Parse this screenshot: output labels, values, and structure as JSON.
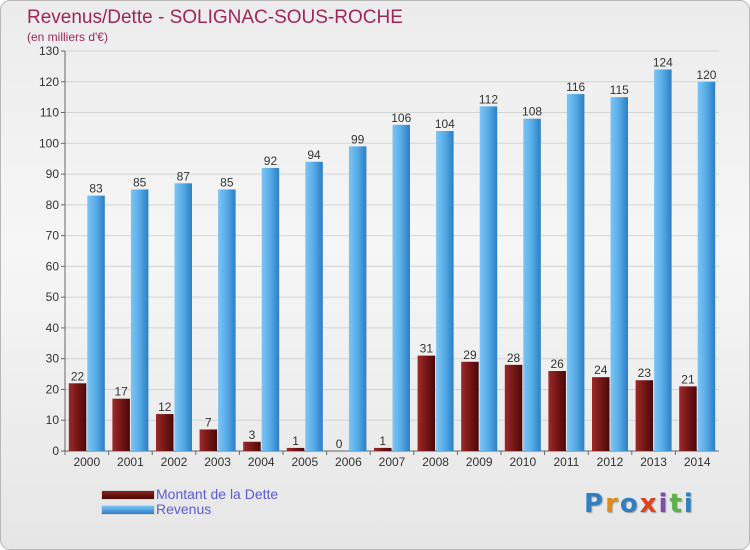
{
  "header": {
    "title": "Revenus/Dette - SOLIGNAC-SOUS-ROCHE",
    "subtitle": "(en milliers d'€)"
  },
  "logo": {
    "text": "Proxiti",
    "letter_colors": [
      "#2f7fc1",
      "#e08a1e",
      "#2f7fc1",
      "#e0421e",
      "#7a4fa8",
      "#5fb04a",
      "#2f7fc1"
    ]
  },
  "colors": {
    "title": "#a0265a",
    "revenus": "#5aaee8",
    "dette": "#7a1818",
    "axis_text": "#333333",
    "grid": "#d4d4d4"
  },
  "chart_data": {
    "type": "bar",
    "categories": [
      "2000",
      "2001",
      "2002",
      "2003",
      "2004",
      "2005",
      "2006",
      "2007",
      "2008",
      "2009",
      "2010",
      "2011",
      "2012",
      "2013",
      "2014"
    ],
    "series": [
      {
        "name": "Montant de la Dette",
        "values": [
          22,
          17,
          12,
          7,
          3,
          1,
          0,
          1,
          31,
          29,
          28,
          26,
          24,
          23,
          21
        ]
      },
      {
        "name": "Revenus",
        "values": [
          83,
          85,
          87,
          85,
          92,
          94,
          99,
          106,
          104,
          112,
          108,
          116,
          115,
          124,
          120
        ]
      }
    ],
    "ylim": [
      0,
      130
    ],
    "yticks": [
      0,
      10,
      20,
      30,
      40,
      50,
      60,
      70,
      80,
      90,
      100,
      110,
      120,
      130
    ],
    "grid": true,
    "legend_position": "bottom-left",
    "data_labels": true
  }
}
